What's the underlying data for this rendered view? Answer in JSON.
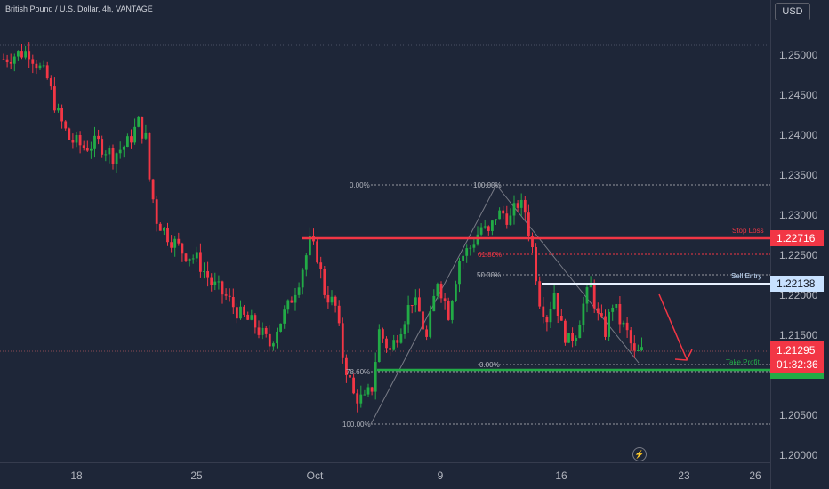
{
  "header": {
    "symbol_title": "British Pound / U.S. Dollar, 4h, VANTAGE"
  },
  "price_scale": {
    "currency": "USD",
    "ticks": [
      "1.25000",
      "1.24500",
      "1.24000",
      "1.23500",
      "1.23000",
      "1.22500",
      "1.22000",
      "1.21500",
      "1.21000",
      "1.20500",
      "1.20000"
    ]
  },
  "time_axis": {
    "ticks": [
      "18",
      "25",
      "Oct",
      "9",
      "16",
      "23",
      "26"
    ]
  },
  "levels": {
    "stop_loss": {
      "label": "Stop Loss",
      "price": "1.22716",
      "color": "#f23645"
    },
    "sell_entry": {
      "label": "Sell Entry",
      "price": "1.22138",
      "color": "#c8e1ff"
    },
    "take_profit": {
      "label": "Take Profit",
      "color": "#22ab46"
    }
  },
  "last_price": {
    "price": "1.21295",
    "countdown": "01:32:36",
    "color": "#f23645"
  },
  "fib_upper": [
    "0.00%",
    "100.00%",
    "61.80%",
    "50.00%",
    "0.00%"
  ],
  "fib_lower": [
    "78.60%",
    "100.00%"
  ],
  "chart_data": {
    "type": "candlestick",
    "title": "British Pound / U.S. Dollar, 4h, VANTAGE",
    "timeframe": "4h",
    "ylim": [
      1.2,
      1.252
    ],
    "colors": {
      "up": "#22ab46",
      "down": "#f23645"
    },
    "grid": false,
    "path": [
      [
        0,
        1.2495
      ],
      [
        4,
        1.2502
      ],
      [
        7,
        1.2505
      ],
      [
        9,
        1.249
      ],
      [
        12,
        1.247
      ],
      [
        15,
        1.2425
      ],
      [
        18,
        1.2395
      ],
      [
        22,
        1.2385
      ],
      [
        26,
        1.239
      ],
      [
        30,
        1.2375
      ],
      [
        34,
        1.239
      ],
      [
        37,
        1.2415
      ],
      [
        39,
        1.2395
      ],
      [
        40,
        1.2345
      ],
      [
        42,
        1.2295
      ],
      [
        45,
        1.2275
      ],
      [
        49,
        1.2255
      ],
      [
        53,
        1.2245
      ],
      [
        57,
        1.2215
      ],
      [
        61,
        1.2198
      ],
      [
        65,
        1.2175
      ],
      [
        69,
        1.2162
      ],
      [
        73,
        1.2138
      ],
      [
        75,
        1.216
      ],
      [
        78,
        1.2185
      ],
      [
        81,
        1.222
      ],
      [
        84,
        1.2265
      ],
      [
        86,
        1.225
      ],
      [
        88,
        1.2205
      ],
      [
        91,
        1.2185
      ],
      [
        93,
        1.2125
      ],
      [
        96,
        1.2075
      ],
      [
        99,
        1.2068
      ],
      [
        101,
        1.2085
      ],
      [
        103,
        1.2155
      ],
      [
        106,
        1.213
      ],
      [
        109,
        1.2162
      ],
      [
        112,
        1.2195
      ],
      [
        114,
        1.2178
      ],
      [
        116,
        1.2145
      ],
      [
        119,
        1.222
      ],
      [
        122,
        1.2178
      ],
      [
        125,
        1.2245
      ],
      [
        128,
        1.226
      ],
      [
        131,
        1.2285
      ],
      [
        133,
        1.2275
      ],
      [
        135,
        1.23
      ],
      [
        137,
        1.2302
      ],
      [
        139,
        1.2295
      ],
      [
        141,
        1.2315
      ],
      [
        143,
        1.2305
      ],
      [
        145,
        1.2258
      ],
      [
        147,
        1.2195
      ],
      [
        149,
        1.2172
      ],
      [
        151,
        1.2205
      ],
      [
        153,
        1.216
      ],
      [
        155,
        1.2142
      ],
      [
        157,
        1.2155
      ],
      [
        159,
        1.2188
      ],
      [
        161,
        1.2212
      ],
      [
        163,
        1.2172
      ],
      [
        165,
        1.2155
      ],
      [
        167,
        1.219
      ],
      [
        169,
        1.2168
      ],
      [
        171,
        1.2152
      ],
      [
        173,
        1.2125
      ],
      [
        175,
        1.2129
      ]
    ],
    "levels": [
      {
        "label": "Stop Loss",
        "price": 1.22716
      },
      {
        "label": "Sell Entry",
        "price": 1.22138
      },
      {
        "label": "Take Profit"
      }
    ],
    "fib_upper": [
      {
        "label": "0.00%"
      },
      {
        "label": "100.00%"
      },
      {
        "label": "61.80%"
      },
      {
        "label": "50.00%"
      },
      {
        "label": "0.00%"
      }
    ],
    "fib_lower": [
      {
        "label": "78.60%"
      },
      {
        "label": "100.00%"
      }
    ],
    "annotation": "projected decline arrow toward Take Profit"
  }
}
